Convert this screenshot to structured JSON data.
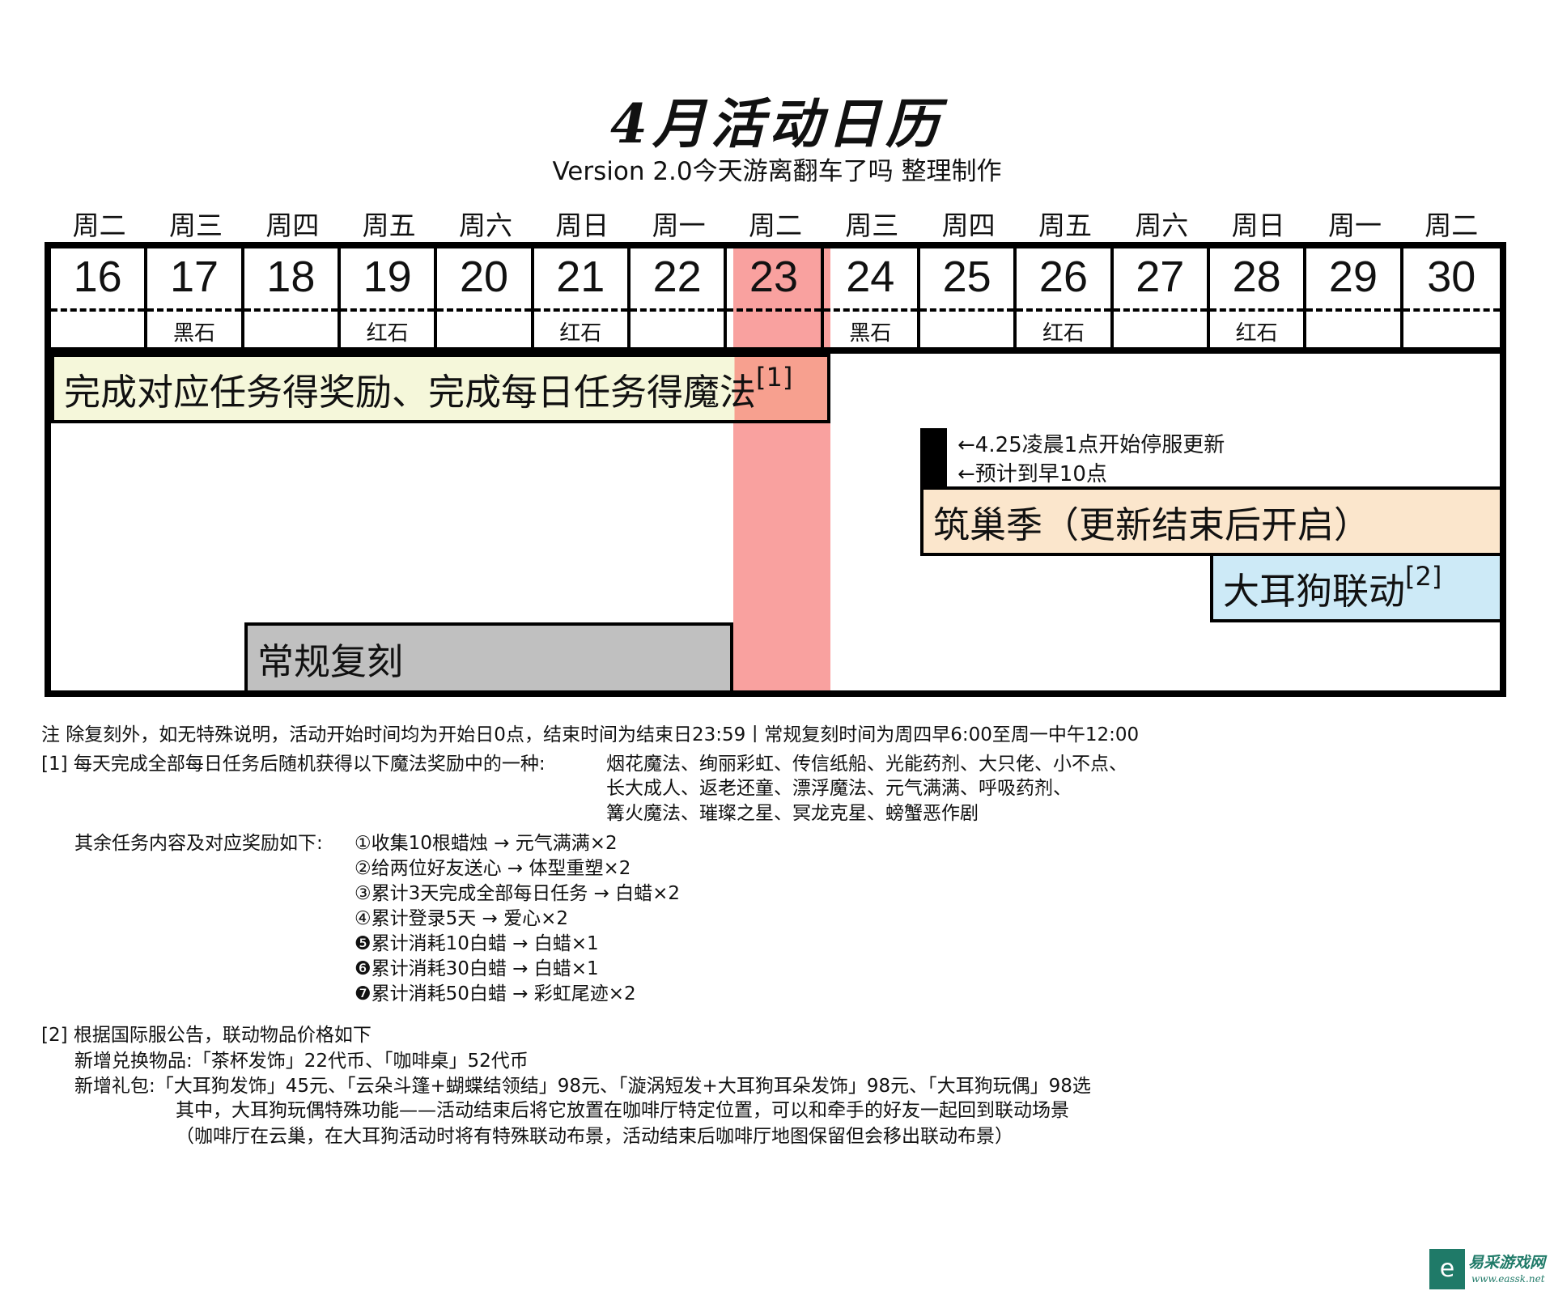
{
  "header": {
    "title": "4月活动日历",
    "subtitle": "Version 2.0今天游离翻车了吗 整理制作"
  },
  "calendar": {
    "highlight_date": "23",
    "highlight_color": "#f9a19f",
    "days": [
      {
        "weekday": "周二",
        "date": "16",
        "stone": ""
      },
      {
        "weekday": "周三",
        "date": "17",
        "stone": "黑石"
      },
      {
        "weekday": "周四",
        "date": "18",
        "stone": ""
      },
      {
        "weekday": "周五",
        "date": "19",
        "stone": "红石"
      },
      {
        "weekday": "周六",
        "date": "20",
        "stone": ""
      },
      {
        "weekday": "周日",
        "date": "21",
        "stone": "红石"
      },
      {
        "weekday": "周一",
        "date": "22",
        "stone": ""
      },
      {
        "weekday": "周二",
        "date": "23",
        "stone": ""
      },
      {
        "weekday": "周三",
        "date": "24",
        "stone": "黑石"
      },
      {
        "weekday": "周四",
        "date": "25",
        "stone": ""
      },
      {
        "weekday": "周五",
        "date": "26",
        "stone": "红石"
      },
      {
        "weekday": "周六",
        "date": "27",
        "stone": ""
      },
      {
        "weekday": "周日",
        "date": "28",
        "stone": "红石"
      },
      {
        "weekday": "周一",
        "date": "29",
        "stone": ""
      },
      {
        "weekday": "周二",
        "date": "30",
        "stone": ""
      }
    ],
    "events": {
      "daily": {
        "label": "完成对应任务得奖励、完成每日任务得魔法",
        "ref": "[1]",
        "color": "#f5f7da",
        "start": "16",
        "end": "23"
      },
      "maintenance": {
        "line1": "←4.25凌晨1点开始停服更新",
        "line2": "←预计到早10点"
      },
      "nest": {
        "label": "筑巢季（更新结束后开启）",
        "color": "#fbe6cc",
        "start": "25",
        "end": "30"
      },
      "collab": {
        "label": "大耳狗联动",
        "ref": "[2]",
        "color": "#cdeaf7",
        "start": "28",
        "end": "30"
      },
      "rerun": {
        "label": "常规复刻",
        "color": "#c0c0c0",
        "start": "18",
        "end": "22"
      }
    }
  },
  "notes": {
    "main": "注 除复刻外，如无特殊说明，活动开始时间均为开始日0点，结束时间为结束日23:59丨常规复刻时间为周四早6:00至周一中午12:00",
    "n1_head": "[1] 每天完成全部每日任务后随机获得以下魔法奖励中的一种:",
    "n1_l1": "烟花魔法、绚丽彩虹、传信纸船、光能药剂、大只佬、小不点、",
    "n1_l2": "长大成人、返老还童、漂浮魔法、元气满满、呼吸药剂、",
    "n1_l3": "篝火魔法、璀璨之星、冥龙克星、螃蟹恶作剧",
    "tasks_head": "其余任务内容及对应奖励如下:",
    "tasks": [
      "①收集10根蜡烛 → 元气满满×2",
      "②给两位好友送心 → 体型重塑×2",
      "③累计3天完成全部每日任务 → 白蜡×2",
      "④累计登录5天  →  爱心×2",
      "❺累计消耗10白蜡 → 白蜡×1",
      "❻累计消耗30白蜡 → 白蜡×1",
      "❼累计消耗50白蜡 → 彩虹尾迹×2"
    ],
    "n2_head": "[2] 根据国际服公告，联动物品价格如下",
    "n2_l1": "新增兑换物品:「茶杯发饰」22代币、「咖啡桌」52代币",
    "n2_l2": "新增礼包:「大耳狗发饰」45元、「云朵斗篷+蝴蝶结领结」98元、「漩涡短发+大耳狗耳朵发饰」98元、「大耳狗玩偶」98选",
    "n2_l3": "其中，大耳狗玩偶特殊功能——活动结束后将它放置在咖啡厅特定位置，可以和牵手的好友一起回到联动场景",
    "n2_l4": "（咖啡厅在云巢，在大耳狗活动时将有特殊联动布景，活动结束后咖啡厅地图保留但会移出联动布景）"
  },
  "watermark": {
    "text": "易采游戏网",
    "url_text": "www.eassk.net",
    "color": "#1f7a68"
  }
}
